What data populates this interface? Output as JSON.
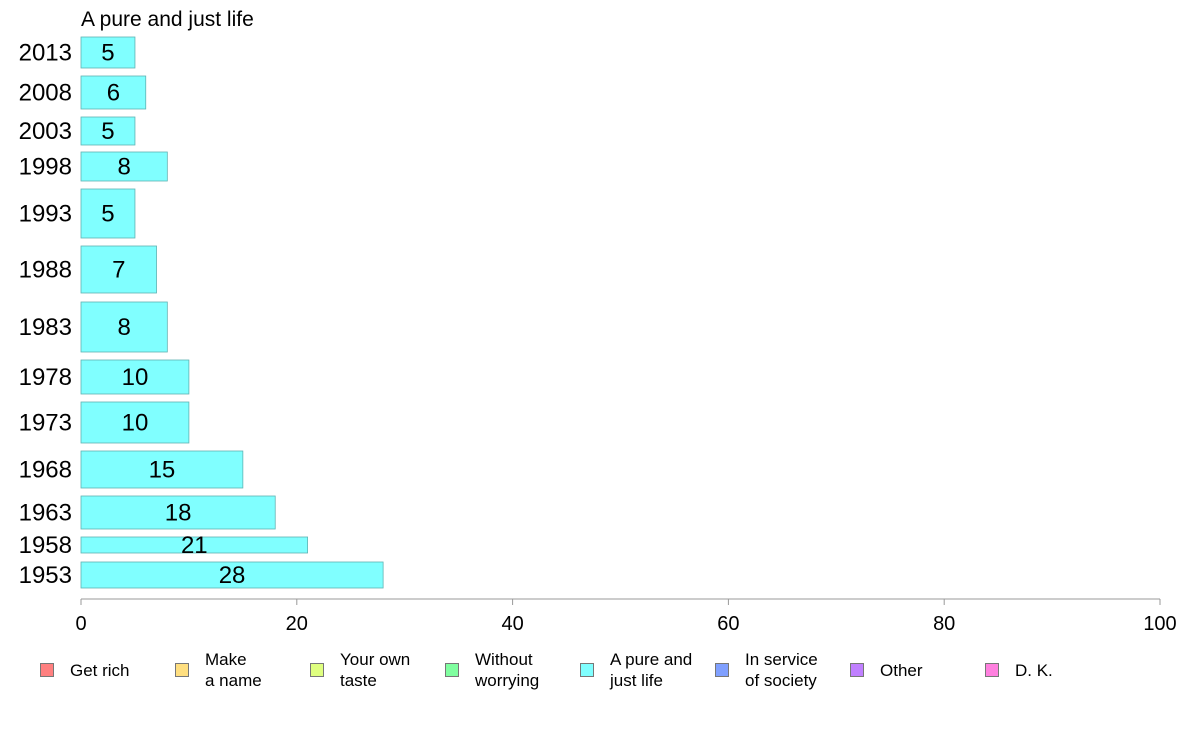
{
  "chart_data": {
    "type": "bar",
    "orientation": "horizontal",
    "title": "A pure and just life",
    "categories": [
      "2013",
      "2008",
      "2003",
      "1998",
      "1993",
      "1988",
      "1983",
      "1978",
      "1973",
      "1968",
      "1963",
      "1958",
      "1953"
    ],
    "values": [
      5,
      6,
      5,
      8,
      5,
      7,
      8,
      10,
      10,
      15,
      18,
      21,
      28
    ],
    "xlim": [
      0,
      100
    ],
    "x_ticks": [
      "0",
      "20",
      "40",
      "60",
      "80",
      "100"
    ],
    "grid": false,
    "bar_color": "#80ffff",
    "legend": {
      "placement": "bottom",
      "entries": [
        {
          "label": "Get rich",
          "color": "#ff8080"
        },
        {
          "label": "Make\na name",
          "color": "#ffdf80"
        },
        {
          "label": "Your own\ntaste",
          "color": "#dfff80"
        },
        {
          "label": "Without\nworrying",
          "color": "#80ffa0"
        },
        {
          "label": "A pure and\njust life",
          "color": "#80ffff"
        },
        {
          "label": "In service\nof society",
          "color": "#80a0ff"
        },
        {
          "label": "Other",
          "color": "#c080ff"
        },
        {
          "label": "D. K.",
          "color": "#ff80df"
        }
      ]
    }
  }
}
